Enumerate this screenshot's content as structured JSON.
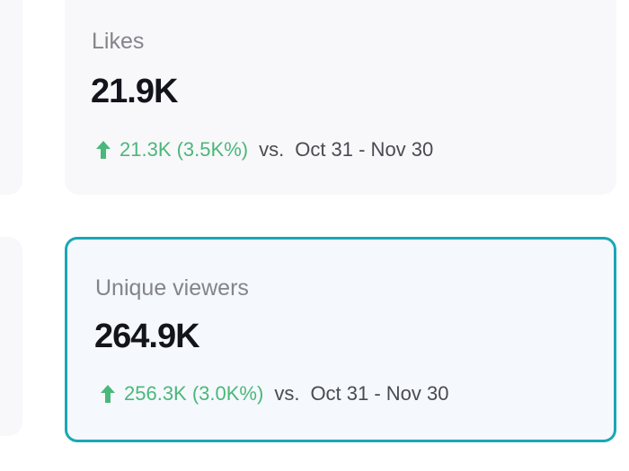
{
  "cards": [
    {
      "label": "Likes",
      "value": "21.9K",
      "change": "21.3K (3.5K%)",
      "direction": "up",
      "vs": "vs.",
      "period": "Oct 31 - Nov 30",
      "selected": false
    },
    {
      "label": "Unique viewers",
      "value": "264.9K",
      "change": "256.3K (3.0K%)",
      "direction": "up",
      "vs": "vs.",
      "period": "Oct 31 - Nov 30",
      "selected": true
    }
  ],
  "colors": {
    "positive": "#4ab87a",
    "selected_border": "#19a7b6"
  }
}
